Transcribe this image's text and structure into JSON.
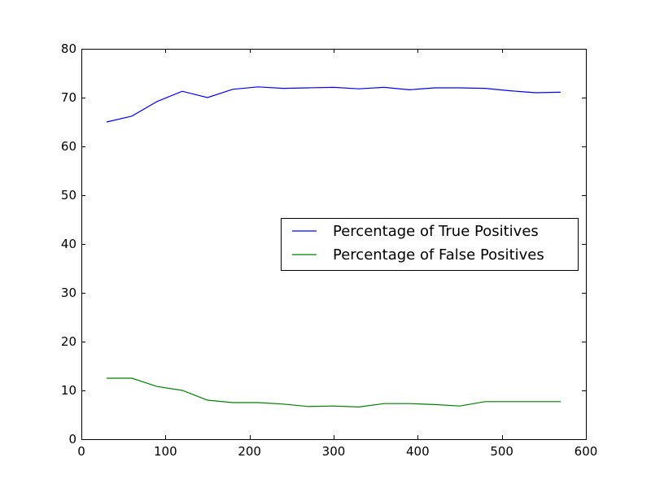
{
  "chart_data": {
    "type": "line",
    "title": "",
    "xlabel": "",
    "ylabel": "",
    "xlim": [
      0,
      600
    ],
    "ylim": [
      0,
      80
    ],
    "xticks": [
      0,
      100,
      200,
      300,
      400,
      500,
      600
    ],
    "yticks": [
      0,
      10,
      20,
      30,
      40,
      50,
      60,
      70,
      80
    ],
    "xtick_labels": [
      "0",
      "100",
      "200",
      "300",
      "400",
      "500",
      "600"
    ],
    "ytick_labels": [
      "0",
      "10",
      "20",
      "30",
      "40",
      "50",
      "60",
      "70",
      "80"
    ],
    "grid": false,
    "legend_position": "center-right",
    "x": [
      30,
      60,
      90,
      120,
      150,
      180,
      210,
      240,
      270,
      300,
      330,
      360,
      390,
      420,
      450,
      480,
      510,
      540,
      570
    ],
    "series": [
      {
        "name": "Percentage of True Positives",
        "color": "#0000ff",
        "values": [
          65.0,
          66.2,
          69.2,
          71.3,
          70.0,
          71.7,
          72.2,
          71.9,
          72.0,
          72.1,
          71.8,
          72.1,
          71.6,
          72.0,
          72.0,
          71.9,
          71.4,
          71.0,
          71.1
        ]
      },
      {
        "name": "Percentage of False Positives",
        "color": "#008000",
        "values": [
          12.5,
          12.5,
          10.8,
          10.0,
          8.0,
          7.5,
          7.5,
          7.2,
          6.7,
          6.8,
          6.6,
          7.3,
          7.3,
          7.1,
          6.8,
          7.7,
          7.7,
          7.7,
          7.7
        ]
      }
    ]
  }
}
